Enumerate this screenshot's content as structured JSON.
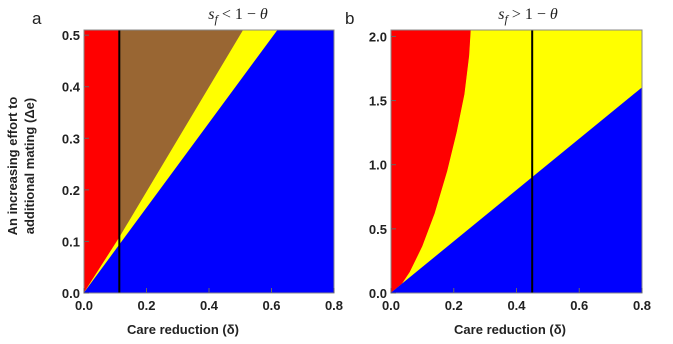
{
  "colors": {
    "red": "#ff0000",
    "yellow": "#ffff00",
    "blue": "#0000ff",
    "brown": "#996633",
    "line": "#000000"
  },
  "chart_data": [
    {
      "type": "area",
      "panel_label": "a",
      "title": {
        "s": "s",
        "f": "f",
        "rest": " < 1 − ",
        "theta": "θ"
      },
      "xlabel": "Care reduction (δ)",
      "ylabel_line1": "An increasing effort to",
      "ylabel_line2": "additional mating (Δe)",
      "xlim": [
        0,
        0.8
      ],
      "ylim": [
        0,
        0.51
      ],
      "x_ticks": [
        "0.0",
        "0.2",
        "0.4",
        "0.6",
        "0.8"
      ],
      "x_tick_values": [
        0,
        0.2,
        0.4,
        0.6,
        0.8
      ],
      "y_ticks": [
        "0.0",
        "0.1",
        "0.2",
        "0.3",
        "0.4",
        "0.5"
      ],
      "y_tick_values": [
        0,
        0.1,
        0.2,
        0.3,
        0.4,
        0.5
      ],
      "vline_x": 0.113,
      "regions": [
        {
          "color": "red",
          "points": [
            [
              0,
              0
            ],
            [
              0,
              0.51
            ],
            [
              0.113,
              0.51
            ],
            [
              0.113,
              0.107
            ]
          ]
        },
        {
          "color": "brown",
          "points": [
            [
              0.113,
              0.107
            ],
            [
              0.113,
              0.51
            ],
            [
              0.51,
              0.51
            ]
          ]
        },
        {
          "color": "yellow",
          "points": [
            [
              0,
              0
            ],
            [
              0.113,
              0.107
            ],
            [
              0.51,
              0.51
            ],
            [
              0.62,
              0.51
            ]
          ]
        },
        {
          "color": "blue",
          "points": [
            [
              0,
              0
            ],
            [
              0.62,
              0.51
            ],
            [
              0.8,
              0.51
            ],
            [
              0.8,
              0
            ]
          ]
        }
      ]
    },
    {
      "type": "area",
      "panel_label": "b",
      "title": {
        "s": "s",
        "f": "f",
        "rest": " > 1 − ",
        "theta": "θ"
      },
      "xlabel": "Care reduction (δ)",
      "xlim": [
        0,
        0.8
      ],
      "ylim": [
        0,
        2.05
      ],
      "x_ticks": [
        "0.0",
        "0.2",
        "0.4",
        "0.6",
        "0.8"
      ],
      "x_tick_values": [
        0,
        0.2,
        0.4,
        0.6,
        0.8
      ],
      "y_ticks": [
        "0.0",
        "0.5",
        "1.0",
        "1.5",
        "2.0"
      ],
      "y_tick_values": [
        0,
        0.5,
        1.0,
        1.5,
        2.0
      ],
      "vline_x": 0.45,
      "regions": [
        {
          "color": "red",
          "points": [
            [
              0,
              0
            ],
            [
              0,
              2.05
            ],
            [
              0.255,
              2.05
            ],
            [
              0.25,
              1.85
            ],
            [
              0.235,
              1.55
            ],
            [
              0.21,
              1.25
            ],
            [
              0.18,
              0.95
            ],
            [
              0.14,
              0.62
            ],
            [
              0.1,
              0.36
            ],
            [
              0.06,
              0.16
            ],
            [
              0.03,
              0.05
            ]
          ]
        },
        {
          "color": "yellow",
          "points": [
            [
              0,
              0
            ],
            [
              0.03,
              0.05
            ],
            [
              0.06,
              0.16
            ],
            [
              0.1,
              0.36
            ],
            [
              0.14,
              0.62
            ],
            [
              0.18,
              0.95
            ],
            [
              0.21,
              1.25
            ],
            [
              0.235,
              1.55
            ],
            [
              0.25,
              1.85
            ],
            [
              0.255,
              2.05
            ],
            [
              0.8,
              2.05
            ],
            [
              0.8,
              1.6
            ]
          ]
        },
        {
          "color": "blue",
          "points": [
            [
              0,
              0
            ],
            [
              0.8,
              1.6
            ],
            [
              0.8,
              0
            ]
          ]
        }
      ]
    }
  ]
}
